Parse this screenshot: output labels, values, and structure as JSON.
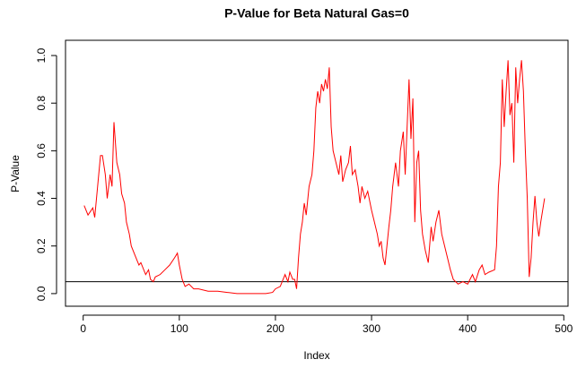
{
  "chart_data": {
    "type": "line",
    "title": "P-Value for Beta Natural Gas=0",
    "x_label": "Index",
    "y_label": "P-Value",
    "color": "#ff0000",
    "hline": 0.05,
    "xlim": [
      -18.4,
      504.4
    ],
    "ylim": [
      -0.053,
      1.064
    ],
    "xticks": [
      0,
      100,
      200,
      300,
      400,
      500
    ],
    "yticks": [
      {
        "value": 0,
        "label": "0.0"
      },
      0.2,
      0.4,
      0.6,
      0.8,
      {
        "value": 1,
        "label": "1.0"
      }
    ],
    "x": [
      1,
      5,
      10,
      12,
      15,
      18,
      20,
      23,
      25,
      28,
      30,
      32,
      35,
      38,
      40,
      43,
      45,
      48,
      50,
      55,
      58,
      60,
      65,
      68,
      70,
      73,
      75,
      80,
      85,
      90,
      95,
      98,
      100,
      103,
      106,
      110,
      115,
      120,
      130,
      140,
      150,
      160,
      170,
      180,
      190,
      197,
      200,
      205,
      208,
      210,
      213,
      215,
      218,
      220,
      222,
      224,
      226,
      228,
      230,
      232,
      235,
      238,
      240,
      242,
      244,
      246,
      248,
      250,
      252,
      254,
      256,
      258,
      260,
      263,
      266,
      268,
      270,
      273,
      276,
      278,
      280,
      283,
      286,
      288,
      290,
      293,
      296,
      300,
      303,
      306,
      308,
      310,
      312,
      314,
      316,
      318,
      320,
      322,
      325,
      328,
      330,
      333,
      335,
      337,
      339,
      341,
      343,
      345,
      347,
      349,
      351,
      353,
      356,
      359,
      362,
      364,
      367,
      370,
      373,
      376,
      379,
      382,
      385,
      390,
      395,
      400,
      405,
      408,
      412,
      415,
      418,
      422,
      428,
      430,
      432,
      434,
      436,
      438,
      440,
      442,
      444,
      446,
      448,
      450,
      452,
      454,
      456,
      458,
      460,
      462,
      464,
      466,
      468,
      470,
      472,
      474,
      476,
      478,
      480
    ],
    "values": [
      0.37,
      0.33,
      0.36,
      0.32,
      0.45,
      0.58,
      0.58,
      0.5,
      0.4,
      0.5,
      0.45,
      0.72,
      0.55,
      0.5,
      0.42,
      0.38,
      0.3,
      0.25,
      0.2,
      0.15,
      0.12,
      0.13,
      0.08,
      0.1,
      0.06,
      0.05,
      0.07,
      0.08,
      0.1,
      0.12,
      0.15,
      0.17,
      0.12,
      0.06,
      0.03,
      0.04,
      0.02,
      0.02,
      0.01,
      0.01,
      0.005,
      0,
      0,
      0,
      0,
      0.005,
      0.02,
      0.03,
      0.06,
      0.08,
      0.05,
      0.09,
      0.06,
      0.06,
      0.02,
      0.15,
      0.25,
      0.3,
      0.38,
      0.33,
      0.45,
      0.5,
      0.6,
      0.78,
      0.85,
      0.8,
      0.88,
      0.85,
      0.9,
      0.86,
      0.95,
      0.7,
      0.6,
      0.55,
      0.5,
      0.58,
      0.47,
      0.52,
      0.55,
      0.62,
      0.5,
      0.52,
      0.45,
      0.38,
      0.45,
      0.4,
      0.43,
      0.35,
      0.3,
      0.25,
      0.2,
      0.22,
      0.15,
      0.12,
      0.2,
      0.28,
      0.35,
      0.45,
      0.55,
      0.45,
      0.6,
      0.68,
      0.5,
      0.7,
      0.9,
      0.65,
      0.82,
      0.3,
      0.55,
      0.6,
      0.35,
      0.25,
      0.18,
      0.13,
      0.28,
      0.22,
      0.3,
      0.35,
      0.25,
      0.2,
      0.15,
      0.1,
      0.06,
      0.04,
      0.05,
      0.04,
      0.08,
      0.05,
      0.1,
      0.12,
      0.08,
      0.09,
      0.1,
      0.2,
      0.45,
      0.55,
      0.9,
      0.7,
      0.85,
      0.98,
      0.75,
      0.8,
      0.55,
      0.95,
      0.8,
      0.9,
      0.98,
      0.85,
      0.6,
      0.4,
      0.07,
      0.15,
      0.3,
      0.41,
      0.3,
      0.24,
      0.3,
      0.35,
      0.4
    ]
  }
}
